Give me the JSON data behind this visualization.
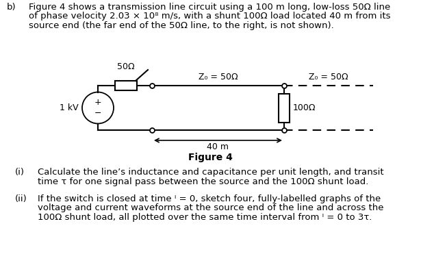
{
  "bg_color": "#ffffff",
  "text_color": "#000000",
  "line_color": "#000000",
  "label_50ohm": "50Ω",
  "label_Z0_50a": "Z₀ = 50Ω",
  "label_Z0_50b": "Z₀ = 50Ω",
  "label_1kV": "1 kV",
  "label_100ohm": "100Ω",
  "label_40m": "40 m",
  "figure_label": "Figure 4",
  "para_b": "b)",
  "para1": "Figure 4 shows a transmission line circuit using a 100 m long, low-loss 50Ω line",
  "para2": "of phase velocity 2.03 × 10⁸ m/s, with a shunt 100Ω load located 40 m from its",
  "para3": "source end (the far end of the 50Ω line, to the right, is not shown).",
  "item_i_label": "(i)",
  "item_i_1": "Calculate the line’s inductance and capacitance per unit length, and transit",
  "item_i_2": "time τ for one signal pass between the source and the 100Ω shunt load.",
  "item_ii_label": "(ii)",
  "item_ii_1": "If the switch is closed at time ᴵ = 0, sketch four, fully-labelled graphs of the",
  "item_ii_2": "voltage and current waveforms at the source end of the line and across the",
  "item_ii_3": "100Ω shunt load, all plotted over the same time interval from ᴵ = 0 to 3τ."
}
